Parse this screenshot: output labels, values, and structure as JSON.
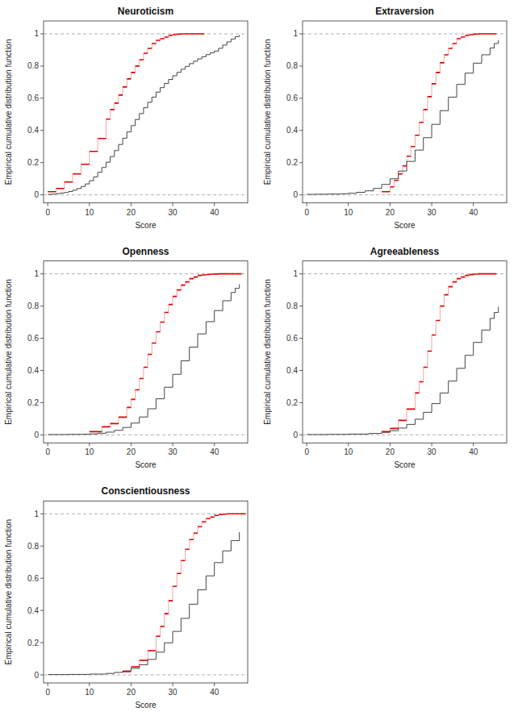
{
  "chart_data": [
    {
      "type": "step",
      "title": "Neuroticism",
      "xlabel": "Score",
      "ylabel": "Empirical cumulative distribution function",
      "xlim": [
        -1,
        48
      ],
      "ylim": [
        -0.05,
        1.08
      ],
      "xticks": [
        0,
        10,
        20,
        30,
        40
      ],
      "yticks": [
        0.0,
        0.2,
        0.4,
        0.6,
        0.8,
        1.0
      ],
      "grid": false,
      "reference_lines": [
        0,
        1
      ],
      "series": [
        {
          "color": "#444444",
          "x": [
            0,
            1,
            2,
            3,
            4,
            5,
            6,
            7,
            8,
            9,
            10,
            11,
            12,
            13,
            14,
            15,
            16,
            17,
            18,
            19,
            20,
            21,
            22,
            23,
            24,
            25,
            26,
            27,
            28,
            29,
            30,
            31,
            32,
            33,
            34,
            35,
            36,
            37,
            38,
            39,
            40,
            41,
            42,
            43,
            44,
            45,
            46
          ],
          "values": [
            0.003,
            0.005,
            0.008,
            0.011,
            0.015,
            0.021,
            0.029,
            0.039,
            0.052,
            0.068,
            0.088,
            0.112,
            0.14,
            0.17,
            0.203,
            0.238,
            0.275,
            0.313,
            0.352,
            0.391,
            0.43,
            0.468,
            0.505,
            0.541,
            0.575,
            0.607,
            0.638,
            0.666,
            0.692,
            0.717,
            0.74,
            0.761,
            0.78,
            0.798,
            0.815,
            0.83,
            0.845,
            0.858,
            0.871,
            0.882,
            0.893,
            0.91,
            0.93,
            0.95,
            0.968,
            0.983,
            0.993
          ]
        },
        {
          "color": "#DD0000",
          "x": [
            0,
            2,
            4,
            6,
            8,
            10,
            12,
            14,
            15,
            16,
            17,
            18,
            19,
            20,
            21,
            22,
            23,
            24,
            25,
            26,
            27,
            28,
            29,
            30,
            31,
            32,
            33,
            34,
            35,
            36
          ],
          "values": [
            0.02,
            0.04,
            0.08,
            0.13,
            0.19,
            0.27,
            0.35,
            0.47,
            0.53,
            0.57,
            0.62,
            0.67,
            0.72,
            0.76,
            0.8,
            0.84,
            0.88,
            0.91,
            0.94,
            0.96,
            0.97,
            0.98,
            0.99,
            0.995,
            0.998,
            1.0,
            1.0,
            1.0,
            1.0,
            1.0
          ]
        }
      ]
    },
    {
      "type": "step",
      "title": "Extraversion",
      "xlabel": "Score",
      "ylabel": "Empirical cumulative distribution function",
      "xlim": [
        -1,
        48
      ],
      "ylim": [
        -0.05,
        1.08
      ],
      "xticks": [
        0,
        10,
        20,
        30,
        40
      ],
      "yticks": [
        0.0,
        0.2,
        0.4,
        0.6,
        0.8,
        1.0
      ],
      "grid": false,
      "reference_lines": [
        0,
        1
      ],
      "series": [
        {
          "color": "#444444",
          "x": [
            0,
            2,
            5,
            8,
            10,
            12,
            14,
            16,
            18,
            20,
            22,
            24,
            26,
            28,
            30,
            32,
            34,
            36,
            38,
            40,
            42,
            44,
            45,
            46
          ],
          "values": [
            0.003,
            0.004,
            0.005,
            0.007,
            0.01,
            0.016,
            0.025,
            0.04,
            0.065,
            0.1,
            0.148,
            0.208,
            0.278,
            0.355,
            0.438,
            0.523,
            0.607,
            0.686,
            0.756,
            0.818,
            0.87,
            0.912,
            0.94,
            0.96
          ]
        },
        {
          "color": "#DD0000",
          "x": [
            18,
            20,
            21,
            22,
            23,
            24,
            25,
            26,
            27,
            28,
            29,
            30,
            31,
            32,
            33,
            34,
            35,
            36,
            37,
            38,
            39,
            40,
            41,
            42,
            43,
            44
          ],
          "values": [
            0.02,
            0.05,
            0.09,
            0.13,
            0.18,
            0.24,
            0.3,
            0.37,
            0.45,
            0.53,
            0.61,
            0.69,
            0.76,
            0.82,
            0.87,
            0.91,
            0.94,
            0.97,
            0.98,
            0.99,
            0.995,
            0.998,
            1.0,
            1.0,
            1.0,
            1.0
          ]
        }
      ]
    },
    {
      "type": "step",
      "title": "Openness",
      "xlabel": "Score",
      "ylabel": "Empirical cumulative distribution function",
      "xlim": [
        -1,
        48
      ],
      "ylim": [
        -0.05,
        1.08
      ],
      "xticks": [
        0,
        10,
        20,
        30,
        40
      ],
      "yticks": [
        0.0,
        0.2,
        0.4,
        0.6,
        0.8,
        1.0
      ],
      "grid": false,
      "reference_lines": [
        0,
        1
      ],
      "series": [
        {
          "color": "#444444",
          "x": [
            0,
            5,
            8,
            10,
            12,
            14,
            16,
            18,
            20,
            22,
            24,
            26,
            28,
            30,
            32,
            34,
            36,
            38,
            40,
            42,
            44,
            45,
            46
          ],
          "values": [
            0.002,
            0.003,
            0.004,
            0.006,
            0.01,
            0.017,
            0.028,
            0.046,
            0.073,
            0.111,
            0.162,
            0.224,
            0.296,
            0.376,
            0.46,
            0.545,
            0.627,
            0.703,
            0.772,
            0.833,
            0.884,
            0.91,
            0.935
          ]
        },
        {
          "color": "#DD0000",
          "x": [
            10,
            13,
            15,
            17,
            19,
            20,
            21,
            22,
            23,
            24,
            25,
            26,
            27,
            28,
            29,
            30,
            31,
            32,
            33,
            34,
            35,
            36,
            37,
            38,
            39,
            40,
            41,
            42,
            43,
            44,
            45
          ],
          "values": [
            0.02,
            0.05,
            0.07,
            0.11,
            0.17,
            0.22,
            0.28,
            0.35,
            0.42,
            0.5,
            0.57,
            0.64,
            0.7,
            0.76,
            0.81,
            0.86,
            0.9,
            0.93,
            0.95,
            0.97,
            0.98,
            0.99,
            0.993,
            0.996,
            0.998,
            0.999,
            1.0,
            1.0,
            1.0,
            1.0,
            1.0
          ]
        }
      ]
    },
    {
      "type": "step",
      "title": "Agreeableness",
      "xlabel": "Score",
      "ylabel": "Empirical cumulative distribution function",
      "xlim": [
        -1,
        48
      ],
      "ylim": [
        -0.05,
        1.08
      ],
      "xticks": [
        0,
        10,
        20,
        30,
        40
      ],
      "yticks": [
        0.0,
        0.2,
        0.4,
        0.6,
        0.8,
        1.0
      ],
      "grid": false,
      "reference_lines": [
        0,
        1
      ],
      "series": [
        {
          "color": "#444444",
          "x": [
            0,
            5,
            10,
            15,
            18,
            20,
            22,
            24,
            26,
            28,
            30,
            32,
            34,
            36,
            38,
            40,
            42,
            44,
            45,
            46
          ],
          "values": [
            0.002,
            0.003,
            0.005,
            0.009,
            0.016,
            0.026,
            0.042,
            0.065,
            0.097,
            0.14,
            0.194,
            0.26,
            0.334,
            0.413,
            0.494,
            0.574,
            0.651,
            0.723,
            0.76,
            0.795
          ]
        },
        {
          "color": "#DD0000",
          "x": [
            18,
            20,
            22,
            24,
            26,
            27,
            28,
            29,
            30,
            31,
            32,
            33,
            34,
            35,
            36,
            37,
            38,
            39,
            40,
            41,
            42,
            43,
            44
          ],
          "values": [
            0.02,
            0.04,
            0.09,
            0.16,
            0.26,
            0.33,
            0.42,
            0.52,
            0.62,
            0.71,
            0.8,
            0.87,
            0.92,
            0.95,
            0.97,
            0.98,
            0.99,
            0.995,
            0.998,
            1.0,
            1.0,
            1.0,
            1.0
          ]
        }
      ]
    },
    {
      "type": "step",
      "title": "Conscientiousness",
      "xlabel": "Score",
      "ylabel": "Empirical cumulative distribution function",
      "xlim": [
        -1,
        48
      ],
      "ylim": [
        -0.05,
        1.08
      ],
      "xticks": [
        0,
        10,
        20,
        30,
        40
      ],
      "yticks": [
        0.0,
        0.2,
        0.4,
        0.6,
        0.8,
        1.0
      ],
      "grid": false,
      "reference_lines": [
        0,
        1
      ],
      "series": [
        {
          "color": "#444444",
          "x": [
            0,
            5,
            10,
            14,
            16,
            18,
            20,
            22,
            24,
            26,
            28,
            30,
            32,
            34,
            36,
            38,
            40,
            42,
            44,
            46
          ],
          "values": [
            0.002,
            0.003,
            0.005,
            0.009,
            0.015,
            0.025,
            0.04,
            0.063,
            0.096,
            0.141,
            0.199,
            0.27,
            0.351,
            0.439,
            0.528,
            0.615,
            0.697,
            0.77,
            0.834,
            0.886
          ]
        },
        {
          "color": "#DD0000",
          "x": [
            18,
            20,
            22,
            24,
            26,
            27,
            28,
            29,
            30,
            31,
            32,
            33,
            34,
            35,
            36,
            37,
            38,
            39,
            40,
            41,
            42,
            43,
            44,
            45,
            46
          ],
          "values": [
            0.02,
            0.05,
            0.09,
            0.15,
            0.24,
            0.3,
            0.38,
            0.46,
            0.55,
            0.63,
            0.71,
            0.78,
            0.84,
            0.88,
            0.92,
            0.95,
            0.97,
            0.98,
            0.99,
            0.995,
            0.998,
            1.0,
            1.0,
            1.0,
            1.0
          ]
        }
      ]
    }
  ]
}
